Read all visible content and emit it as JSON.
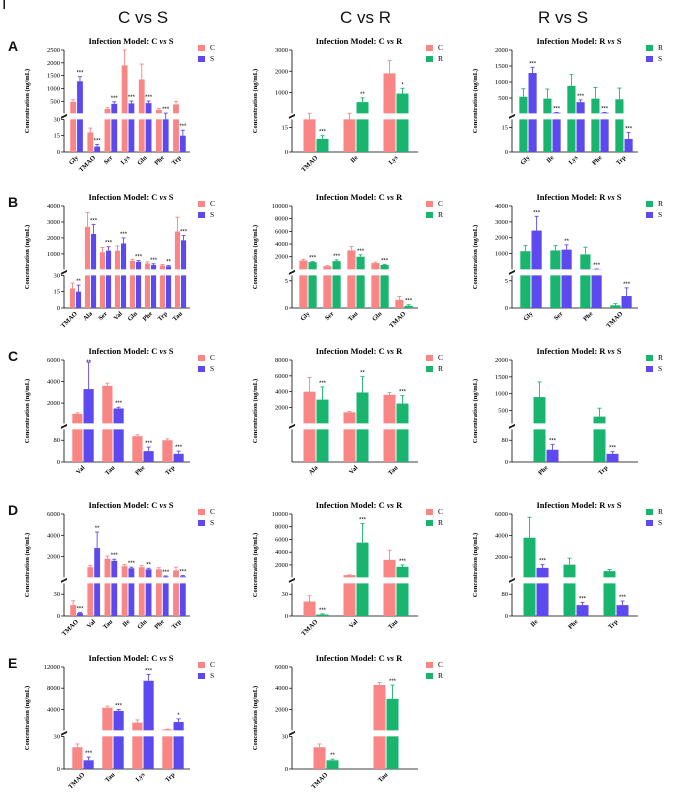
{
  "figure_letter": "I",
  "column_headers": [
    "C vs S",
    "C vs R",
    "R vs S"
  ],
  "row_labels": [
    "A",
    "B",
    "C",
    "D",
    "E"
  ],
  "colors": {
    "C": "#f98585",
    "S": "#5c4af0",
    "R": "#19b56f"
  },
  "chart_data": [
    {
      "row": "A",
      "col": 0,
      "type": "bar",
      "title_pre": "Infection Model: C ",
      "title_vs": "vs",
      "title_post": " S",
      "ylabel": "Concentration (ng/mL)",
      "series_names": [
        "C",
        "S"
      ],
      "categories": [
        "Gly",
        "TMAO",
        "Ser",
        "Lys",
        "Gln",
        "Phe",
        "Trp"
      ],
      "values": [
        [
          480,
          1280
        ],
        [
          18,
          5
        ],
        [
          200,
          400
        ],
        [
          1900,
          420
        ],
        [
          1350,
          430
        ],
        [
          160,
          30
        ],
        [
          380,
          15
        ]
      ],
      "errors": [
        [
          80,
          180
        ],
        [
          4,
          2
        ],
        [
          50,
          80
        ],
        [
          600,
          90
        ],
        [
          600,
          80
        ],
        [
          60,
          10
        ],
        [
          120,
          5
        ]
      ],
      "sig": [
        "***",
        "***",
        "***",
        "***",
        "***",
        "***",
        "***"
      ],
      "lower": {
        "ticks": [
          0,
          15,
          30
        ],
        "max": 30
      },
      "upper": {
        "ticks": [
          0,
          500,
          1000,
          1500,
          2000,
          2500
        ],
        "min": 0,
        "max": 2500,
        "labels": [
          "",
          "500",
          "1000",
          "1500",
          "2000",
          "2500"
        ]
      }
    },
    {
      "row": "A",
      "col": 1,
      "type": "bar",
      "title_pre": "Infection Model: C ",
      "title_vs": "vs",
      "title_post": " R",
      "ylabel": "Concentration (ng/mL)",
      "series_names": [
        "C",
        "R"
      ],
      "categories": [
        "TMAO",
        "Ile",
        "Lys"
      ],
      "values": [
        [
          20,
          8
        ],
        [
          20,
          550
        ],
        [
          1900,
          950
        ]
      ],
      "errors": [
        [
          2,
          2
        ],
        [
          3,
          200
        ],
        [
          600,
          250
        ]
      ],
      "sig": [
        "***",
        "**",
        "*"
      ],
      "lower": {
        "ticks": [
          0,
          15
        ],
        "max": 20
      },
      "upper": {
        "ticks": [
          1000,
          2000,
          3000
        ],
        "min": 0,
        "max": 3000,
        "labels": [
          "1000",
          "2000",
          "3000"
        ]
      }
    },
    {
      "row": "A",
      "col": 2,
      "type": "bar",
      "title_pre": "Infection Model: R ",
      "title_vs": "vs",
      "title_post": " S",
      "ylabel": "Concentration (ng/mL)",
      "series_names": [
        "R",
        "S"
      ],
      "categories": [
        "Gly",
        "Ile",
        "Lys",
        "Phe",
        "Trp"
      ],
      "values": [
        [
          540,
          1280
        ],
        [
          480,
          40
        ],
        [
          880,
          370
        ],
        [
          480,
          40
        ],
        [
          460,
          8
        ]
      ],
      "errors": [
        [
          250,
          180
        ],
        [
          300,
          10
        ],
        [
          350,
          70
        ],
        [
          350,
          10
        ],
        [
          350,
          4
        ]
      ],
      "sig": [
        "***",
        "***",
        "***",
        "***",
        "***"
      ],
      "lower": {
        "ticks": [
          0,
          15
        ],
        "max": 20
      },
      "upper": {
        "ticks": [
          500,
          1000,
          1500,
          2000
        ],
        "min": 0,
        "max": 2000,
        "labels": [
          "500",
          "1000",
          "1500",
          "2000"
        ]
      }
    },
    {
      "row": "B",
      "col": 0,
      "type": "bar",
      "title_pre": "Infection Model: C ",
      "title_vs": "vs",
      "title_post": " S",
      "ylabel": "Concentration (ng/mL)",
      "series_names": [
        "C",
        "S"
      ],
      "categories": [
        "TMAO",
        "Ala",
        "Ser",
        "Val",
        "Gln",
        "Phe",
        "Trp",
        "Tau"
      ],
      "values": [
        [
          18,
          15
        ],
        [
          2700,
          2250
        ],
        [
          1100,
          1200
        ],
        [
          1200,
          1650
        ],
        [
          560,
          500
        ],
        [
          400,
          300
        ],
        [
          270,
          220
        ],
        [
          2400,
          1850
        ]
      ],
      "errors": [
        [
          5,
          6
        ],
        [
          900,
          600
        ],
        [
          300,
          250
        ],
        [
          300,
          350
        ],
        [
          100,
          80
        ],
        [
          100,
          80
        ],
        [
          60,
          50
        ],
        [
          900,
          300
        ]
      ],
      "sig": [
        "**",
        "***",
        "***",
        "***",
        "***",
        "***",
        "**",
        "***"
      ],
      "lower": {
        "ticks": [
          0,
          15,
          30
        ],
        "max": 30
      },
      "upper": {
        "ticks": [
          1000,
          2000,
          3000,
          4000
        ],
        "min": 0,
        "max": 4000,
        "labels": [
          "1000",
          "2000",
          "3000",
          "4000"
        ]
      }
    },
    {
      "row": "B",
      "col": 1,
      "type": "bar",
      "title_pre": "Infection Model: C ",
      "title_vs": "vs",
      "title_post": " R",
      "ylabel": "Concentration (ng/mL)",
      "series_names": [
        "C",
        "R"
      ],
      "categories": [
        "Gly",
        "Ser",
        "Tau",
        "Gln",
        "TMAO"
      ],
      "values": [
        [
          1400,
          1150
        ],
        [
          500,
          1300
        ],
        [
          3000,
          2000
        ],
        [
          1000,
          700
        ],
        [
          1.5,
          0.4
        ]
      ],
      "errors": [
        [
          200,
          100
        ],
        [
          100,
          200
        ],
        [
          600,
          300
        ],
        [
          150,
          100
        ],
        [
          0.6,
          0.2
        ]
      ],
      "sig": [
        "***",
        "***",
        "***",
        "***",
        "***"
      ],
      "lower": {
        "ticks": [
          0,
          5
        ],
        "max": 6
      },
      "upper": {
        "ticks": [
          2000,
          4000,
          6000,
          8000,
          10000
        ],
        "min": 0,
        "max": 10000,
        "labels": [
          "2000",
          "4000",
          "6000",
          "8000",
          "10000"
        ]
      }
    },
    {
      "row": "B",
      "col": 2,
      "type": "bar",
      "title_pre": "Infection Model: R ",
      "title_vs": "vs",
      "title_post": " S",
      "ylabel": "Concentration (ng/mL)",
      "series_names": [
        "R",
        "S"
      ],
      "categories": [
        "Gly",
        "Ser",
        "Phe",
        "TMAO"
      ],
      "values": [
        [
          1150,
          2450
        ],
        [
          1200,
          1250
        ],
        [
          950,
          20
        ],
        [
          0.5,
          2.2
        ]
      ],
      "errors": [
        [
          350,
          900
        ],
        [
          300,
          300
        ],
        [
          450,
          10
        ],
        [
          0.3,
          1.5
        ]
      ],
      "sig": [
        "***",
        "**",
        "***",
        "***"
      ],
      "lower": {
        "ticks": [
          0,
          5
        ],
        "max": 6
      },
      "upper": {
        "ticks": [
          1000,
          2000,
          3000,
          4000
        ],
        "min": 0,
        "max": 4000,
        "labels": [
          "1000",
          "2000",
          "3000",
          "4000"
        ]
      }
    },
    {
      "row": "C",
      "col": 0,
      "type": "bar",
      "title_pre": "Infection Model: C ",
      "title_vs": "vs",
      "title_post": " S",
      "ylabel": "Concentration (ng/mL)",
      "series_names": [
        "C",
        "S"
      ],
      "categories": [
        "Val",
        "Tau",
        "Phe",
        "Trp"
      ],
      "values": [
        [
          1000,
          3300
        ],
        [
          3600,
          1500
        ],
        [
          95,
          40
        ],
        [
          80,
          30
        ]
      ],
      "errors": [
        [
          100,
          2500
        ],
        [
          250,
          120
        ],
        [
          5,
          15
        ],
        [
          5,
          10
        ]
      ],
      "sig": [
        "**",
        "***",
        "***",
        "***"
      ],
      "lower": {
        "ticks": [
          0,
          80
        ],
        "max": 120
      },
      "upper": {
        "ticks": [
          2000,
          4000,
          6000
        ],
        "min": 0,
        "max": 6000,
        "labels": [
          "2000",
          "4000",
          "6000"
        ]
      }
    },
    {
      "row": "C",
      "col": 1,
      "type": "bar",
      "title_pre": "Infection Model: C ",
      "title_vs": "vs",
      "title_post": " R",
      "ylabel": "Concentration (ng/mL)",
      "series_names": [
        "C",
        "R"
      ],
      "categories": [
        "Ala",
        "Val",
        "Tau"
      ],
      "values": [
        [
          4000,
          3000
        ],
        [
          1400,
          3900
        ],
        [
          3600,
          2500
        ]
      ],
      "errors": [
        [
          1800,
          1600
        ],
        [
          100,
          2000
        ],
        [
          300,
          1000
        ]
      ],
      "sig": [
        "***",
        "**",
        "***"
      ],
      "lower": {
        "ticks": [],
        "max": 1
      },
      "upper": {
        "ticks": [
          2000,
          4000,
          6000,
          8000
        ],
        "min": 0,
        "max": 8000,
        "labels": [
          "2000",
          "4000",
          "6000",
          "8000"
        ]
      }
    },
    {
      "row": "C",
      "col": 2,
      "type": "bar",
      "title_pre": "Infection Model: R ",
      "title_vs": "vs",
      "title_post": " S",
      "ylabel": "Concentration (ng/mL)",
      "series_names": [
        "R",
        "S"
      ],
      "categories": [
        "Phe",
        "Trp"
      ],
      "values": [
        [
          900,
          45
        ],
        [
          320,
          30
        ]
      ],
      "errors": [
        [
          450,
          20
        ],
        [
          250,
          8
        ]
      ],
      "sig": [
        "***",
        "***"
      ],
      "lower": {
        "ticks": [
          0,
          80
        ],
        "max": 120
      },
      "upper": {
        "ticks": [
          500,
          1000,
          1500,
          2000
        ],
        "min": 0,
        "max": 2000,
        "labels": [
          "500",
          "1000",
          "1500",
          "2000"
        ]
      }
    },
    {
      "row": "D",
      "col": 0,
      "type": "bar",
      "title_pre": "Infection Model: C ",
      "title_vs": "vs",
      "title_post": " S",
      "ylabel": "Concentration (ng/mL)",
      "series_names": [
        "C",
        "S"
      ],
      "categories": [
        "TMAO",
        "Val",
        "Tau",
        "Ile",
        "Gln",
        "Phe",
        "Trp"
      ],
      "values": [
        [
          15,
          4
        ],
        [
          1000,
          2800
        ],
        [
          1800,
          1600
        ],
        [
          1100,
          900
        ],
        [
          1000,
          800
        ],
        [
          800,
          120
        ],
        [
          700,
          150
        ]
      ],
      "errors": [
        [
          6,
          1
        ],
        [
          150,
          1500
        ],
        [
          250,
          150
        ],
        [
          150,
          100
        ],
        [
          150,
          100
        ],
        [
          150,
          60
        ],
        [
          300,
          80
        ]
      ],
      "sig": [
        "***",
        "**",
        "***",
        "***",
        "**",
        "***",
        "***"
      ],
      "lower": {
        "ticks": [
          0,
          30
        ],
        "max": 45
      },
      "upper": {
        "ticks": [
          0,
          2000,
          4000,
          6000
        ],
        "min": 0,
        "max": 6000,
        "labels": [
          "",
          "2000",
          "4000",
          "6000"
        ]
      }
    },
    {
      "row": "D",
      "col": 1,
      "type": "bar",
      "title_pre": "Infection Model: C ",
      "title_vs": "vs",
      "title_post": " R",
      "ylabel": "Concentration (ng/mL)",
      "series_names": [
        "C",
        "R"
      ],
      "categories": [
        "TMAO",
        "Val",
        "Tau"
      ],
      "values": [
        [
          20,
          2
        ],
        [
          400,
          5500
        ],
        [
          2800,
          1700
        ]
      ],
      "errors": [
        [
          8,
          1
        ],
        [
          50,
          3000
        ],
        [
          1500,
          300
        ]
      ],
      "sig": [
        "***",
        "***",
        "***"
      ],
      "lower": {
        "ticks": [
          0,
          30
        ],
        "max": 45
      },
      "upper": {
        "ticks": [
          2000,
          4000,
          6000,
          8000,
          10000
        ],
        "min": 0,
        "max": 10000,
        "labels": [
          "2000",
          "4000",
          "6000",
          "8000",
          "10000"
        ]
      }
    },
    {
      "row": "D",
      "col": 2,
      "type": "bar",
      "title_pre": "Infection Model: R ",
      "title_vs": "vs",
      "title_post": " S",
      "ylabel": "Concentration (ng/mL)",
      "series_names": [
        "R",
        "S"
      ],
      "categories": [
        "Ile",
        "Phe",
        "Trp"
      ],
      "values": [
        [
          3800,
          1000
        ],
        [
          1300,
          40
        ],
        [
          700,
          40
        ]
      ],
      "errors": [
        [
          1900,
          300
        ],
        [
          600,
          10
        ],
        [
          150,
          15
        ]
      ],
      "sig": [
        "***",
        "***",
        "***"
      ],
      "lower": {
        "ticks": [
          0,
          80
        ],
        "max": 120
      },
      "upper": {
        "ticks": [
          2000,
          4000,
          6000
        ],
        "min": 0,
        "max": 6000,
        "labels": [
          "2000",
          "4000",
          "6000"
        ]
      }
    },
    {
      "row": "E",
      "col": 0,
      "type": "bar",
      "title_pre": "Infection Model: C ",
      "title_vs": "vs",
      "title_post": " S",
      "ylabel": "Concentration (ng/mL)",
      "series_names": [
        "C",
        "S"
      ],
      "categories": [
        "TMAO",
        "Tau",
        "Lys",
        "Trp"
      ],
      "values": [
        [
          20,
          8
        ],
        [
          4300,
          3700
        ],
        [
          1500,
          9400
        ],
        [
          200,
          1600
        ]
      ],
      "errors": [
        [
          3,
          3
        ],
        [
          300,
          250
        ],
        [
          500,
          1200
        ],
        [
          60,
          600
        ]
      ],
      "sig": [
        "***",
        "***",
        "***",
        "*"
      ],
      "lower": {
        "ticks": [
          0,
          30
        ],
        "max": 30
      },
      "upper": {
        "ticks": [
          4000,
          8000,
          12000
        ],
        "min": 0,
        "max": 12000,
        "labels": [
          "4000",
          "8000",
          "12000"
        ]
      }
    },
    {
      "row": "E",
      "col": 1,
      "type": "bar",
      "title_pre": "Infection Model: C ",
      "title_vs": "vs",
      "title_post": " R",
      "ylabel": "Concentration (ng/mL)",
      "series_names": [
        "C",
        "R"
      ],
      "categories": [
        "TMAO",
        "Tau"
      ],
      "values": [
        [
          20,
          8
        ],
        [
          4300,
          3000
        ]
      ],
      "errors": [
        [
          3,
          1
        ],
        [
          250,
          1300
        ]
      ],
      "sig": [
        "**",
        "***"
      ],
      "lower": {
        "ticks": [
          0,
          30
        ],
        "max": 30
      },
      "upper": {
        "ticks": [
          2000,
          4000,
          6000
        ],
        "min": 0,
        "max": 6000,
        "labels": [
          "2000",
          "4000",
          "6000"
        ]
      }
    }
  ]
}
